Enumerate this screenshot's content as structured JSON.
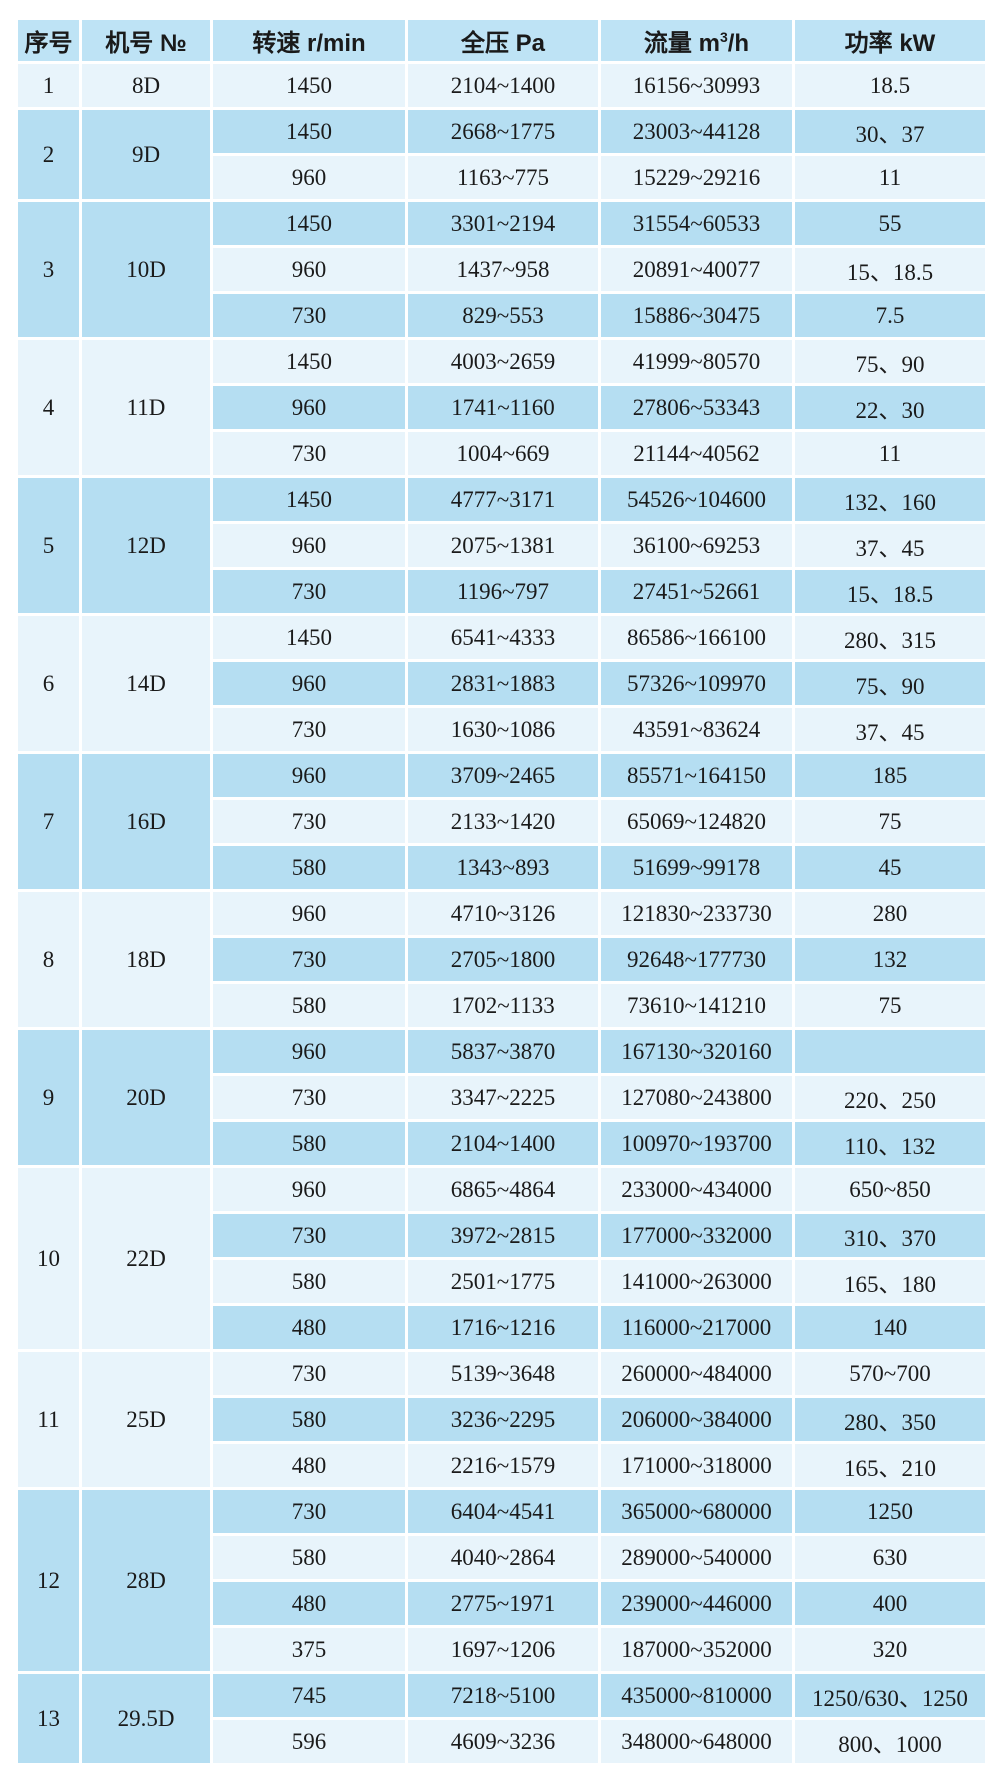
{
  "table": {
    "headers": {
      "index": "序号",
      "model": "机号 №",
      "speed": "转速 r/min",
      "pressure": "全压 Pa",
      "flow_pre": "流量 m",
      "flow_sup": "3",
      "flow_post": "/h",
      "power": "功率 kW"
    },
    "groups": [
      {
        "index": "1",
        "model": "8D",
        "rows": [
          [
            "1450",
            "2104~1400",
            "16156~30993",
            "18.5"
          ]
        ]
      },
      {
        "index": "2",
        "model": "9D",
        "rows": [
          [
            "1450",
            "2668~1775",
            "23003~44128",
            "30、37"
          ],
          [
            "960",
            "1163~775",
            "15229~29216",
            "11"
          ]
        ]
      },
      {
        "index": "3",
        "model": "10D",
        "rows": [
          [
            "1450",
            "3301~2194",
            "31554~60533",
            "55"
          ],
          [
            "960",
            "1437~958",
            "20891~40077",
            "15、18.5"
          ],
          [
            "730",
            "829~553",
            "15886~30475",
            "7.5"
          ]
        ]
      },
      {
        "index": "4",
        "model": "11D",
        "rows": [
          [
            "1450",
            "4003~2659",
            "41999~80570",
            "75、90"
          ],
          [
            "960",
            "1741~1160",
            "27806~53343",
            "22、30"
          ],
          [
            "730",
            "1004~669",
            "21144~40562",
            "11"
          ]
        ]
      },
      {
        "index": "5",
        "model": "12D",
        "rows": [
          [
            "1450",
            "4777~3171",
            "54526~104600",
            "132、160"
          ],
          [
            "960",
            "2075~1381",
            "36100~69253",
            "37、45"
          ],
          [
            "730",
            "1196~797",
            "27451~52661",
            "15、18.5"
          ]
        ]
      },
      {
        "index": "6",
        "model": "14D",
        "rows": [
          [
            "1450",
            "6541~4333",
            "86586~166100",
            "280、315"
          ],
          [
            "960",
            "2831~1883",
            "57326~109970",
            "75、90"
          ],
          [
            "730",
            "1630~1086",
            "43591~83624",
            "37、45"
          ]
        ]
      },
      {
        "index": "7",
        "model": "16D",
        "rows": [
          [
            "960",
            "3709~2465",
            "85571~164150",
            "185"
          ],
          [
            "730",
            "2133~1420",
            "65069~124820",
            "75"
          ],
          [
            "580",
            "1343~893",
            "51699~99178",
            "45"
          ]
        ]
      },
      {
        "index": "8",
        "model": "18D",
        "rows": [
          [
            "960",
            "4710~3126",
            "121830~233730",
            "280"
          ],
          [
            "730",
            "2705~1800",
            "92648~177730",
            "132"
          ],
          [
            "580",
            "1702~1133",
            "73610~141210",
            "75"
          ]
        ]
      },
      {
        "index": "9",
        "model": "20D",
        "rows": [
          [
            "960",
            "5837~3870",
            "167130~320160",
            ""
          ],
          [
            "730",
            "3347~2225",
            "127080~243800",
            "220、250"
          ],
          [
            "580",
            "2104~1400",
            "100970~193700",
            "110、132"
          ]
        ]
      },
      {
        "index": "10",
        "model": "22D",
        "rows": [
          [
            "960",
            "6865~4864",
            "233000~434000",
            "650~850"
          ],
          [
            "730",
            "3972~2815",
            "177000~332000",
            "310、370"
          ],
          [
            "580",
            "2501~1775",
            "141000~263000",
            "165、180"
          ],
          [
            "480",
            "1716~1216",
            "116000~217000",
            "140"
          ]
        ]
      },
      {
        "index": "11",
        "model": "25D",
        "rows": [
          [
            "730",
            "5139~3648",
            "260000~484000",
            "570~700"
          ],
          [
            "580",
            "3236~2295",
            "206000~384000",
            "280、350"
          ],
          [
            "480",
            "2216~1579",
            "171000~318000",
            "165、210"
          ]
        ]
      },
      {
        "index": "12",
        "model": "28D",
        "rows": [
          [
            "730",
            "6404~4541",
            "365000~680000",
            "1250"
          ],
          [
            "580",
            "4040~2864",
            "289000~540000",
            "630"
          ],
          [
            "480",
            "2775~1971",
            "239000~446000",
            "400"
          ],
          [
            "375",
            "1697~1206",
            "187000~352000",
            "320"
          ]
        ]
      },
      {
        "index": "13",
        "model": "29.5D",
        "rows": [
          [
            "745",
            "7218~5100",
            "435000~810000",
            "1250/630、1250"
          ],
          [
            "596",
            "4609~3236",
            "348000~648000",
            "800、1000"
          ]
        ]
      }
    ],
    "colors": {
      "header_bg": "#bee3f5",
      "row_dark_bg": "#b5def2",
      "row_light_bg": "#e8f4fb",
      "model_col_bg": "#bee3f5",
      "index_col_bg": "#e8f4fb",
      "border": "#ffffff",
      "text": "#1a1a1a"
    }
  }
}
